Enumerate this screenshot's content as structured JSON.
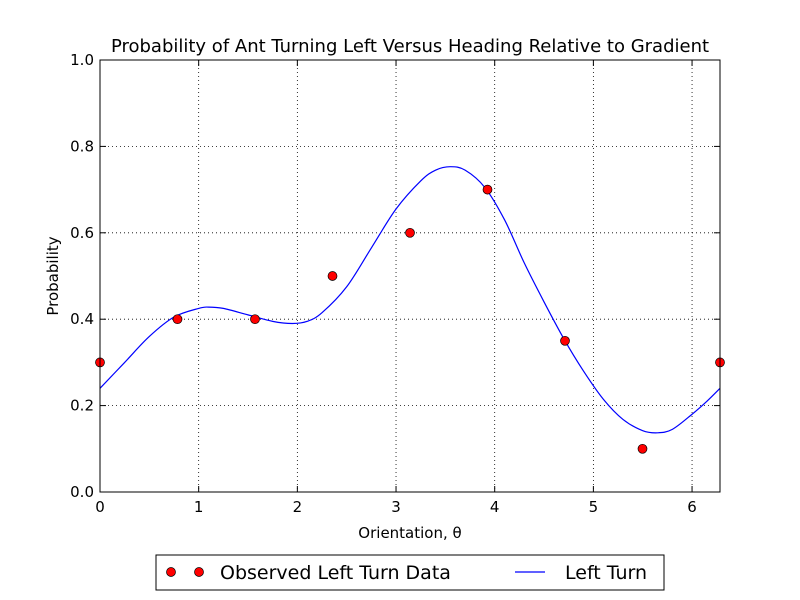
{
  "chart_data": {
    "type": "line",
    "title": "Probability of Ant Turning Left Versus Heading Relative to Gradient",
    "xlabel": "Orientation, θ",
    "ylabel": "Probability",
    "xlim": [
      0,
      6.2832
    ],
    "ylim": [
      0.0,
      1.0
    ],
    "x_ticks": [
      "0",
      "1",
      "2",
      "3",
      "4",
      "5",
      "6"
    ],
    "y_ticks": [
      "0.0",
      "0.2",
      "0.4",
      "0.6",
      "0.8",
      "1.0"
    ],
    "grid": "dotted",
    "legend_position": "below-center",
    "series": [
      {
        "name": "Observed Left Turn Data",
        "kind": "scatter",
        "color": "#ff0000",
        "x": [
          0,
          0.7854,
          1.5708,
          2.3562,
          3.1416,
          3.927,
          4.7124,
          5.4978,
          6.2832
        ],
        "y": [
          0.3,
          0.4,
          0.4,
          0.5,
          0.6,
          0.7,
          0.35,
          0.1,
          0.3
        ]
      },
      {
        "name": "Left Turn",
        "kind": "line",
        "color": "#0000ff",
        "x": [
          0,
          0.25,
          0.5,
          0.75,
          1.0,
          1.1,
          1.25,
          1.5,
          1.75,
          1.95,
          2.1,
          2.25,
          2.5,
          2.75,
          3.0,
          3.25,
          3.4,
          3.55,
          3.7,
          3.9,
          4.1,
          4.3,
          4.5,
          4.7,
          4.9,
          5.1,
          5.3,
          5.5,
          5.65,
          5.8,
          6.0,
          6.15,
          6.2832
        ],
        "y": [
          0.24,
          0.3,
          0.36,
          0.405,
          0.425,
          0.428,
          0.425,
          0.41,
          0.395,
          0.39,
          0.395,
          0.415,
          0.475,
          0.565,
          0.655,
          0.72,
          0.745,
          0.753,
          0.745,
          0.705,
          0.63,
          0.53,
          0.44,
          0.355,
          0.28,
          0.215,
          0.168,
          0.142,
          0.137,
          0.145,
          0.18,
          0.21,
          0.24
        ]
      }
    ]
  }
}
